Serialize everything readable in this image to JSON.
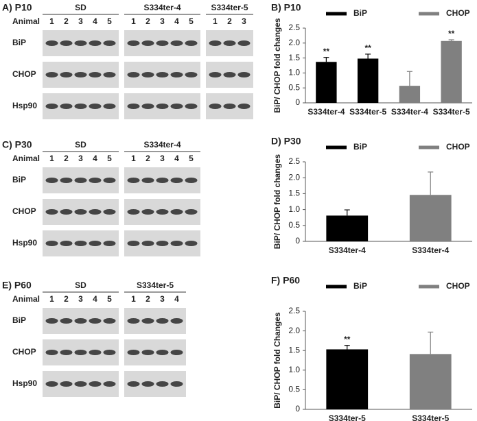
{
  "blots": [
    {
      "title": "A) P10",
      "row_header": "Animal",
      "groups": [
        {
          "name": "SD",
          "lanes": [
            "1",
            "2",
            "3",
            "4",
            "5"
          ]
        },
        {
          "name": "S334ter-4",
          "lanes": [
            "1",
            "2",
            "3",
            "4",
            "5"
          ]
        },
        {
          "name": "S334ter-5",
          "lanes": [
            "1",
            "2",
            "3"
          ]
        }
      ],
      "rows": [
        "BiP",
        "CHOP",
        "Hsp90"
      ]
    },
    {
      "title": "C) P30",
      "row_header": "Animal",
      "groups": [
        {
          "name": "SD",
          "lanes": [
            "1",
            "2",
            "3",
            "4",
            "5"
          ]
        },
        {
          "name": "S334ter-4",
          "lanes": [
            "1",
            "2",
            "3",
            "4",
            "5"
          ]
        }
      ],
      "rows": [
        "BiP",
        "CHOP",
        "Hsp90"
      ]
    },
    {
      "title": "E) P60",
      "row_header": "Animal",
      "groups": [
        {
          "name": "SD",
          "lanes": [
            "1",
            "2",
            "3",
            "4",
            "5"
          ]
        },
        {
          "name": "S334ter-5",
          "lanes": [
            "1",
            "2",
            "3",
            "4"
          ]
        }
      ],
      "rows": [
        "BiP",
        "CHOP",
        "Hsp90"
      ]
    }
  ],
  "chart_data": [
    {
      "type": "bar",
      "title": "B) P10",
      "y_label": "BiP/ CHOP fold changes",
      "categories": [
        "S334ter-4",
        "S334ter-5",
        "S334ter-4",
        "S334ter-5"
      ],
      "series": [
        {
          "name": "BiP",
          "color": "#000000",
          "values": [
            1.37,
            1.48,
            null,
            null
          ],
          "errors": [
            0.15,
            0.15,
            null,
            null
          ],
          "significance": [
            "**",
            "**",
            null,
            null
          ]
        },
        {
          "name": "CHOP",
          "color": "#808080",
          "values": [
            null,
            null,
            0.57,
            2.07
          ],
          "errors": [
            null,
            null,
            0.48,
            0.04
          ],
          "significance": [
            null,
            null,
            null,
            "**"
          ]
        }
      ],
      "ylim": [
        0,
        2.5
      ],
      "yticks": [
        0,
        0.5,
        {
          "value": 1,
          "label": "1.0"
        },
        1.5,
        {
          "value": 2,
          "label": "2.0"
        },
        2.5
      ]
    },
    {
      "type": "bar",
      "title": "D) P30",
      "y_label": "BiP/ CHOP fold changes",
      "categories": [
        "S334ter-4",
        "S334ter-4"
      ],
      "series": [
        {
          "name": "BiP",
          "color": "#000000",
          "values": [
            0.81,
            null
          ],
          "errors": [
            0.18,
            null
          ]
        },
        {
          "name": "CHOP",
          "color": "#808080",
          "values": [
            null,
            1.46
          ],
          "errors": [
            null,
            0.72
          ]
        }
      ],
      "ylim": [
        0,
        2.5
      ],
      "yticks": [
        0,
        0.5,
        {
          "value": 1,
          "label": "1.0"
        },
        1.5,
        {
          "value": 2,
          "label": "2.0"
        },
        2.5
      ]
    },
    {
      "type": "bar",
      "title": "F) P60",
      "y_label": "BiP/ CHOP fold Changes",
      "categories": [
        "S334ter-5",
        "S334ter-5"
      ],
      "series": [
        {
          "name": "BiP",
          "color": "#000000",
          "values": [
            1.53,
            null
          ],
          "errors": [
            0.1,
            null
          ],
          "significance": [
            "**",
            null
          ]
        },
        {
          "name": "CHOP",
          "color": "#808080",
          "values": [
            null,
            1.41
          ],
          "errors": [
            null,
            0.56
          ]
        }
      ],
      "ylim": [
        0,
        2.5
      ],
      "yticks": [
        0,
        0.5,
        {
          "value": 1,
          "label": "1.0"
        },
        1.5,
        {
          "value": 2,
          "label": "2.0"
        },
        2.5
      ]
    }
  ]
}
